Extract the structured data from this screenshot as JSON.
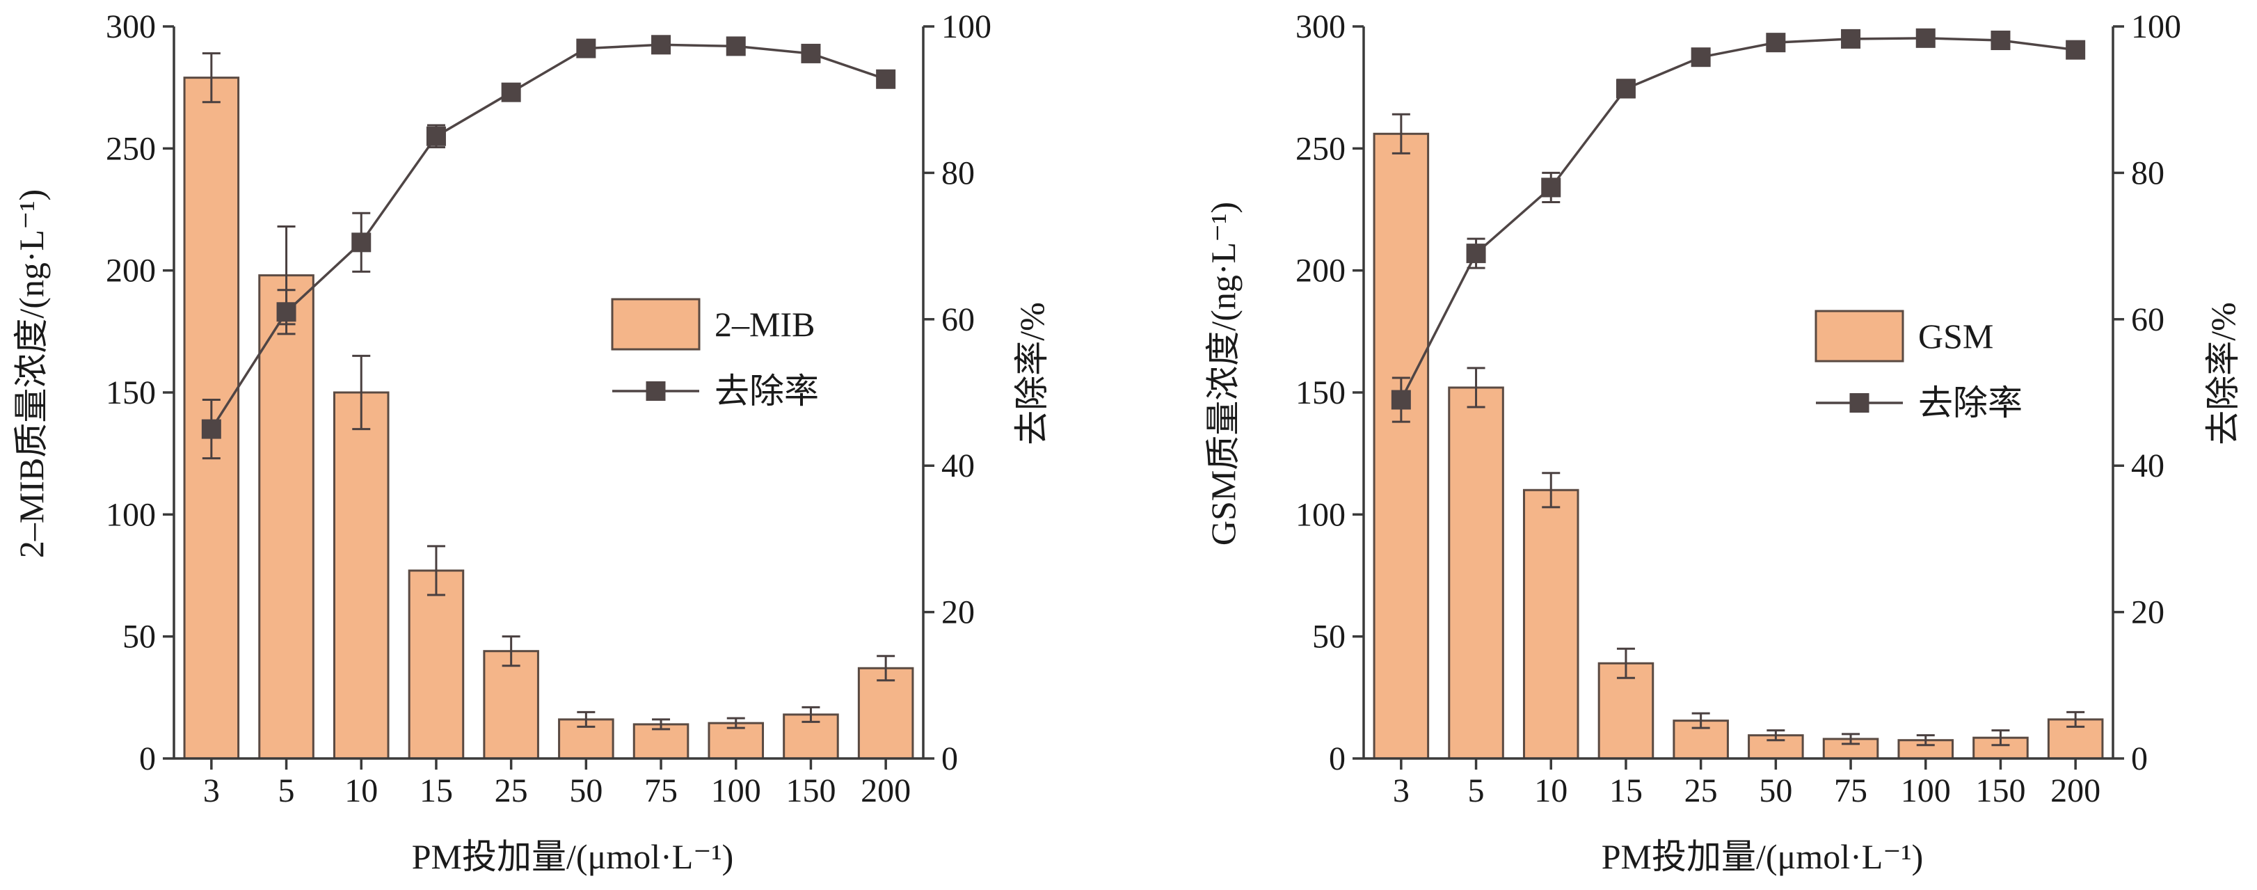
{
  "chart_data": [
    {
      "type": "bar",
      "categories": [
        "3",
        "5",
        "10",
        "15",
        "25",
        "50",
        "75",
        "100",
        "150",
        "200"
      ],
      "xlabel": "PM投加量/(μmol·L⁻¹)",
      "ylabel": "2–MIB质量浓度/(ng·L⁻¹)",
      "y2label": "去除率/%",
      "ylim": [
        0,
        300
      ],
      "y2lim": [
        0,
        100
      ],
      "yticks": [
        0,
        50,
        100,
        150,
        200,
        250,
        300
      ],
      "y2ticks": [
        0,
        20,
        40,
        60,
        80,
        100
      ],
      "legend_position": "right-middle",
      "series": [
        {
          "name": "2–MIB",
          "kind": "bar",
          "axis": "left",
          "values": [
            279,
            198,
            150,
            77,
            44,
            16,
            14,
            14.5,
            18,
            37
          ],
          "errors": [
            10,
            20,
            15,
            10,
            6,
            3,
            2,
            2,
            3,
            5
          ]
        },
        {
          "name": "去除率",
          "kind": "line",
          "axis": "right",
          "values": [
            45,
            61,
            70.5,
            85,
            91,
            97,
            97.5,
            97.3,
            96.3,
            92.8
          ],
          "errors": [
            4,
            3,
            4,
            1.5,
            0.6,
            0.5,
            0.5,
            0.5,
            0.6,
            0.8
          ]
        }
      ],
      "colors": {
        "bar_fill": "#f4b589",
        "bar_stroke": "#5a4a42",
        "line": "#4f4545",
        "marker": "#4f4545"
      }
    },
    {
      "type": "bar",
      "categories": [
        "3",
        "5",
        "10",
        "15",
        "25",
        "50",
        "75",
        "100",
        "150",
        "200"
      ],
      "xlabel": "PM投加量/(μmol·L⁻¹)",
      "ylabel": "GSM质量浓度/(ng·L⁻¹)",
      "y2label": "去除率/%",
      "ylim": [
        0,
        300
      ],
      "y2lim": [
        0,
        100
      ],
      "yticks": [
        0,
        50,
        100,
        150,
        200,
        250,
        300
      ],
      "y2ticks": [
        0,
        20,
        40,
        60,
        80,
        100
      ],
      "legend_position": "right-middle",
      "series": [
        {
          "name": "GSM",
          "kind": "bar",
          "axis": "left",
          "values": [
            256,
            152,
            110,
            39,
            15.5,
            9.5,
            8,
            7.5,
            8.5,
            16
          ],
          "errors": [
            8,
            8,
            7,
            6,
            3,
            2,
            2,
            2,
            3,
            3
          ]
        },
        {
          "name": "去除率",
          "kind": "line",
          "axis": "right",
          "values": [
            49,
            69,
            78,
            91.5,
            95.8,
            97.8,
            98.3,
            98.4,
            98.1,
            96.8
          ],
          "errors": [
            3,
            2,
            2,
            1.2,
            0.6,
            0.4,
            0.3,
            0.3,
            0.4,
            0.6
          ]
        }
      ],
      "colors": {
        "bar_fill": "#f4b589",
        "bar_stroke": "#5a4a42",
        "line": "#4f4545",
        "marker": "#4f4545"
      }
    }
  ]
}
